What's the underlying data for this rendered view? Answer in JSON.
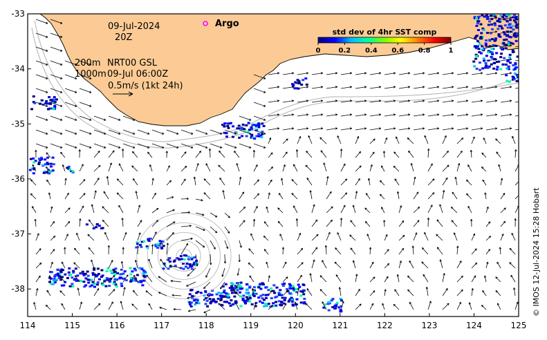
{
  "map": {
    "lon_range": [
      114,
      125
    ],
    "lat_range": [
      -38.5,
      -33
    ],
    "x_ticks": [
      {
        "value": 114,
        "label": "114"
      },
      {
        "value": 115,
        "label": "115"
      },
      {
        "value": 116,
        "label": "116"
      },
      {
        "value": 117,
        "label": "117"
      },
      {
        "value": 118,
        "label": "118"
      },
      {
        "value": 119,
        "label": "119"
      },
      {
        "value": 120,
        "label": "120"
      },
      {
        "value": 121,
        "label": "121"
      },
      {
        "value": 122,
        "label": "122"
      },
      {
        "value": 123,
        "label": "123"
      },
      {
        "value": 124,
        "label": "124"
      },
      {
        "value": 125,
        "label": "125"
      }
    ],
    "y_ticks": [
      {
        "value": -33,
        "label": "-33"
      },
      {
        "value": -34,
        "label": "-34"
      },
      {
        "value": -35,
        "label": "-35"
      },
      {
        "value": -36,
        "label": "-36"
      },
      {
        "value": -37,
        "label": "-37"
      },
      {
        "value": -38,
        "label": "-38"
      }
    ],
    "colors": {
      "land": "#fccb95",
      "coastline": "#000000",
      "isobath": "#b0b0b0",
      "vector": "#000000",
      "argo_marker": "#ff00ff"
    }
  },
  "annotations": {
    "date": "09-Jul-2024",
    "time": "20Z",
    "argo_label": "Argo",
    "isobath_1": "200m",
    "isobath_2": "1000m",
    "product": "NRT00 GSL",
    "product_time": "09-Jul 06:00Z",
    "scale_text": "0.5m/s (1kt 24h)",
    "credit": "© IMOS 12-Jul-2024 15:28 Hobart"
  },
  "colorbar": {
    "title": "std dev of 4hr SST comp",
    "range": [
      0,
      1
    ],
    "tick_labels": [
      "0",
      "0.2",
      "0.4",
      "0.6",
      "0.8",
      "1"
    ],
    "colors": [
      "#000080",
      "#0000ff",
      "#00bfff",
      "#00ffa0",
      "#80ff00",
      "#ffff00",
      "#ff8000",
      "#ff0000",
      "#800000"
    ]
  },
  "eddy": {
    "center_lon": 117.5,
    "center_lat": -37.4
  }
}
